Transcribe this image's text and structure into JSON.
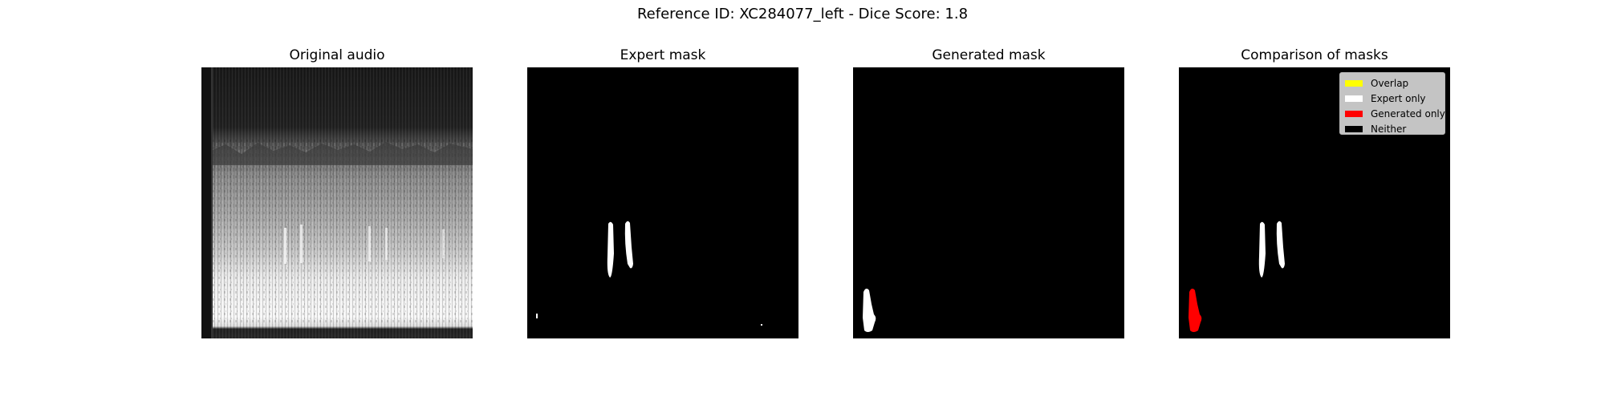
{
  "figure": {
    "title": "Reference ID: XC284077_left - Dice Score: 1.8"
  },
  "panels": [
    {
      "title": "Original audio"
    },
    {
      "title": "Expert mask"
    },
    {
      "title": "Generated mask"
    },
    {
      "title": "Comparison of masks"
    }
  ],
  "legend": {
    "items": [
      {
        "label": "Overlap",
        "color": "#ffff00"
      },
      {
        "label": "Expert only",
        "color": "#ffffff"
      },
      {
        "label": "Generated only",
        "color": "#ff0000"
      },
      {
        "label": "Neither",
        "color": "#000000"
      }
    ]
  },
  "colors": {
    "background": "#000000",
    "expert": "#ffffff",
    "generated_only": "#ff0000",
    "overlap": "#ffff00"
  }
}
